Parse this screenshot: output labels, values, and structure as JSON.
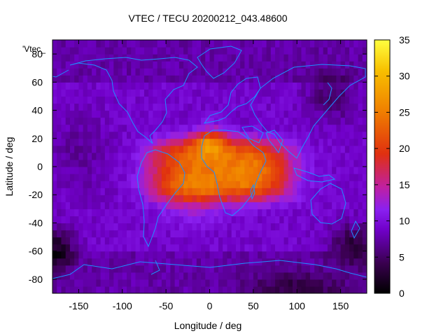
{
  "chart_data": {
    "type": "heatmap",
    "title": "VTEC / TECU 20200212_043.48600",
    "xlabel": "Longitude / deg",
    "ylabel": "Latitude / deg",
    "series_key": "'Vtec_",
    "xlim": [
      -180,
      180
    ],
    "ylim": [
      -90,
      90
    ],
    "xticks": [
      -150,
      -100,
      -50,
      0,
      50,
      100,
      150
    ],
    "yticks": [
      -80,
      -60,
      -40,
      -20,
      0,
      20,
      40,
      60,
      80
    ],
    "colorbar": {
      "min": 0,
      "max": 35,
      "ticks": [
        0,
        5,
        10,
        15,
        20,
        25,
        30,
        35
      ]
    },
    "grid": {
      "lon_step_deg": 5,
      "lat_step_deg": 5
    },
    "field_model": {
      "background_tecu": 9,
      "equatorial_band": {
        "center_lon": 10,
        "center_lat": -2,
        "lon_halfwidth": 80,
        "lat_halfwidth": 22,
        "peak_tecu": 14
      },
      "hotspots": [
        {
          "lon": 0,
          "lat": 18,
          "sigma_lon": 14,
          "sigma_lat": 7,
          "amp_tecu": 10
        },
        {
          "lon": -20,
          "lat": -22,
          "sigma_lon": 28,
          "sigma_lat": 12,
          "amp_tecu": 4
        },
        {
          "lon": 60,
          "lat": -5,
          "sigma_lon": 35,
          "sigma_lat": 12,
          "amp_tecu": 3
        }
      ],
      "lows": [
        {
          "lon": -175,
          "lat": -58,
          "sigma_lon": 14,
          "sigma_lat": 10,
          "amp_tecu": -7
        },
        {
          "lon": 165,
          "lat": -55,
          "sigma_lon": 18,
          "sigma_lat": 10,
          "amp_tecu": -6
        },
        {
          "lon": 140,
          "lat": 50,
          "sigma_lon": 20,
          "sigma_lat": 12,
          "amp_tecu": -4
        },
        {
          "lon": -150,
          "lat": 10,
          "sigma_lon": 25,
          "sigma_lat": 20,
          "amp_tecu": -2
        },
        {
          "lon": 100,
          "lat": -85,
          "sigma_lon": 40,
          "sigma_lat": 8,
          "amp_tecu": -4
        }
      ]
    },
    "colors": {
      "coastline": "#1e90ff",
      "colormap_stops": [
        "#000000",
        "#3a0050",
        "#7000c8",
        "#8a20f0",
        "#c020a0",
        "#e03010",
        "#f08000",
        "#f8c000",
        "#ffff40"
      ]
    }
  }
}
